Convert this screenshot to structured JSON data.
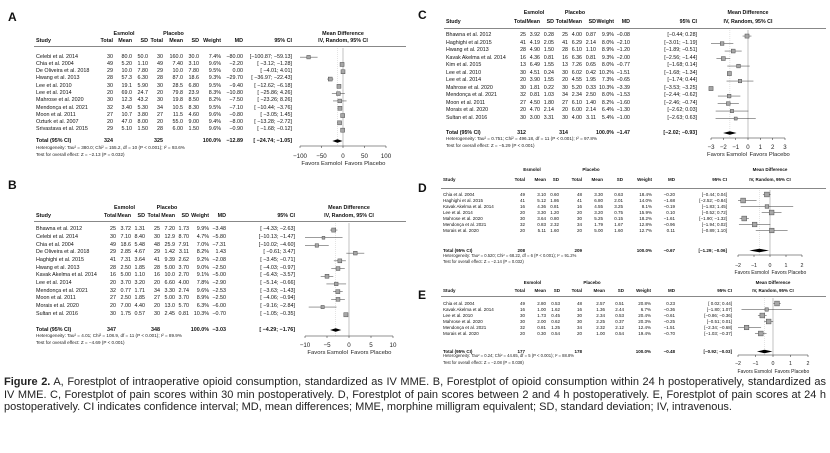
{
  "headers": {
    "group_esmolol": "Esmolol",
    "group_placebo": "Placebo",
    "group_plot": "Mean Difference",
    "columns": [
      "Study",
      "Total",
      "Mean",
      "SD",
      "Total",
      "Mean",
      "SD",
      "Weight",
      "MD",
      "95% CI"
    ],
    "plot_subtitle": "IV, Random, 95% CI",
    "total_label": "Total (95% CI)",
    "favors": [
      "Favors Esmolol",
      "Favors Placebo"
    ]
  },
  "colors": {
    "square_fill": "#a6a6a6",
    "square_stroke": "#444444",
    "zero_line": "#9a9a9a",
    "diamond": "#000000"
  },
  "panels": [
    {
      "letter": "A",
      "axis": {
        "lim": [
          -100,
          100
        ],
        "ticks": [
          -100,
          -50,
          0,
          50,
          100
        ]
      },
      "studies": [
        [
          "Celebi et al. 2014",
          "30",
          "80.0",
          "50.0",
          "30",
          "160.0",
          "30.0",
          "7.4%",
          "−80.00",
          "[−100.87; −59.13]"
        ],
        [
          "Chia et al. 2004",
          "49",
          "5.20",
          "1.10",
          "49",
          "7.40",
          "3.10",
          "9.6%",
          "−2.20",
          "[ −3.12; −1.28]"
        ],
        [
          "De Oliveira et al. 2018",
          "29",
          "10.0",
          "7.80",
          "29",
          "10.0",
          "7.80",
          "9.5%",
          "0.00",
          "[ −4.01; 4.01]"
        ],
        [
          "Hwang et al. 2013",
          "28",
          "57.3",
          "6.30",
          "28",
          "87.0",
          "18.6",
          "9.3%",
          "−29.70",
          "[ −36.97; −22.43]"
        ],
        [
          "Lee et al. 2010",
          "30",
          "19.1",
          "5.90",
          "30",
          "28.5",
          "6.80",
          "9.5%",
          "−9.40",
          "[ −12.62; −6.18]"
        ],
        [
          "Lee et al. 2014",
          "20",
          "69.0",
          "24.7",
          "20",
          "79.8",
          "23.9",
          "8.3%",
          "−10.80",
          "[ −25.86; 4.26]"
        ],
        [
          "Mahrose et al. 2020",
          "30",
          "12.3",
          "43.2",
          "30",
          "19.8",
          "8.50",
          "8.2%",
          "−7.50",
          "[ −23.26; 8.26]"
        ],
        [
          "Mendonça et al. 2021",
          "32",
          "3.40",
          "5.30",
          "34",
          "10.5",
          "8.30",
          "9.5%",
          "−7.10",
          "[ −10.44; −3.76]"
        ],
        [
          "Moon et al. 2011",
          "27",
          "10.7",
          "3.80",
          "27",
          "11.5",
          "4.60",
          "9.6%",
          "−0.80",
          "[ −3.05; 1.45]"
        ],
        [
          "Ozturk et al. 2007",
          "20",
          "47.0",
          "8.00",
          "20",
          "55.0",
          "9.00",
          "9.4%",
          "−8.00",
          "[ −13.28; −2.72]"
        ],
        [
          "Srivastava et al. 2015",
          "29",
          "5.10",
          "1.50",
          "28",
          "6.00",
          "1.50",
          "9.6%",
          "−0.90",
          "[ −1.68; −0.12]"
        ]
      ],
      "total": {
        "e_total": "324",
        "p_total": "325",
        "weight": "100.0%",
        "md": "−12.89",
        "ci": "[ −24.74; −1.05]"
      },
      "heterogeneity": "Heterogeneity: Tau² = 380.0; Chi² = 155.2, df = 10 (P < 0.001); I² = 93.6%",
      "overall_effect": "Test for overall effect: Z = −2.13 (P = 0.032)"
    },
    {
      "letter": "B",
      "axis": {
        "lim": [
          -10,
          10
        ],
        "ticks": [
          -10,
          -5,
          0,
          5,
          10
        ]
      },
      "studies": [
        [
          "Bhawna et al. 2012",
          "25",
          "3.72",
          "1.31",
          "25",
          "7.20",
          "1.73",
          "9.9%",
          "−3.48",
          "[ −4.33; −2.63]"
        ],
        [
          "Celebi et al. 2014",
          "30",
          "7.10",
          "8.40",
          "30",
          "12.9",
          "8.70",
          "4.7%",
          "−5.80",
          "[−10.13; −1.47]"
        ],
        [
          "Chia et al. 2004",
          "49",
          "18.6",
          "5.48",
          "48",
          "25.9",
          "7.91",
          "7.0%",
          "−7.31",
          "[−10.02; −4.60]"
        ],
        [
          "De Oliveira et al. 2018",
          "29",
          "2.85",
          "4.67",
          "29",
          "1.42",
          "3.11",
          "8.2%",
          "1.43",
          "[ −0.61; 3.47]"
        ],
        [
          "Haghighi et al. 2015",
          "41",
          "7.31",
          "3.64",
          "41",
          "9.39",
          "2.62",
          "9.2%",
          "−2.08",
          "[ −3.45; −0.71]"
        ],
        [
          "Hwang et al. 2013",
          "28",
          "2.50",
          "1.85",
          "28",
          "5.00",
          "3.70",
          "9.0%",
          "−2.50",
          "[ −4.03; −0.97]"
        ],
        [
          "Kavak Akelma et al. 2014",
          "16",
          "5.00",
          "1.10",
          "16",
          "10.0",
          "2.70",
          "9.1%",
          "−5.00",
          "[ −6.43; −3.57]"
        ],
        [
          "Lee et al. 2014",
          "20",
          "3.70",
          "3.20",
          "20",
          "6.60",
          "4.00",
          "7.8%",
          "−2.90",
          "[ −5.14; −0.66]"
        ],
        [
          "Mendonça et al. 2021",
          "32",
          "0.77",
          "1.71",
          "34",
          "3.30",
          "2.74",
          "9.6%",
          "−2.53",
          "[ −3.63; −1.43]"
        ],
        [
          "Moon et al. 2011",
          "27",
          "2.50",
          "1.85",
          "27",
          "5.00",
          "3.70",
          "8.9%",
          "−2.50",
          "[ −4.06; −0.94]"
        ],
        [
          "Morais et al. 2020",
          "20",
          "7.00",
          "4.40",
          "20",
          "13.0",
          "5.70",
          "6.3%",
          "−6.00",
          "[ −9.16; −2.84]"
        ],
        [
          "Sultan et al. 2016",
          "30",
          "1.75",
          "0.57",
          "30",
          "2.45",
          "0.81",
          "10.3%",
          "−0.70",
          "[ −1.05; −0.35]"
        ]
      ],
      "total": {
        "e_total": "347",
        "p_total": "348",
        "weight": "100.0%",
        "md": "−3.03",
        "ci": "[ −4.29; −1.76]"
      },
      "heterogeneity": "Heterogeneity: Tau² = 4.01; Chi² = 108.9, df = 11 (P < 0.001); I² = 89.9%",
      "overall_effect": "Test for overall effect: Z = −4.69 (P < 0.001)"
    },
    {
      "letter": "C",
      "axis": {
        "lim": [
          -3,
          3
        ],
        "ticks": [
          -3,
          -2,
          -1,
          0,
          1,
          2,
          3
        ]
      },
      "studies": [
        [
          "Bhawna et al. 2012",
          "25",
          "3.92",
          "0.28",
          "25",
          "4.00",
          "0.87",
          "9.9%",
          "−0.08",
          "[−0.44; 0.28]"
        ],
        [
          "Haghighi et al.2015",
          "41",
          "4.19",
          "2.05",
          "41",
          "6.29",
          "2.14",
          "8.0%",
          "−2.10",
          "[−3.01; −1.19]"
        ],
        [
          "Hwang et al. 2013",
          "28",
          "4.90",
          "1.50",
          "28",
          "6.10",
          "1.10",
          "8.9%",
          "−1.20",
          "[−1.89; −0.51]"
        ],
        [
          "Kavak Akelma et al. 2014",
          "16",
          "4.36",
          "0.81",
          "16",
          "6.36",
          "0.81",
          "9.3%",
          "−2.00",
          "[−2.56; −1.44]"
        ],
        [
          "Kim et al. 2015",
          "13",
          "6.49",
          "1.55",
          "13",
          "7.26",
          "0.65",
          "8.0%",
          "−0.77",
          "[−1.68; 0.14]"
        ],
        [
          "Lee et al. 2010",
          "30",
          "4.51",
          "0.24",
          "30",
          "6.02",
          "0.42",
          "10.2%",
          "−1.51",
          "[−1.68; −1.34]"
        ],
        [
          "Lee et al. 2014",
          "20",
          "3.90",
          "1.55",
          "20",
          "4.55",
          "1.95",
          "7.3%",
          "−0.65",
          "[−1.74; 0.44]"
        ],
        [
          "Mahrose et al. 2020",
          "30",
          "1.81",
          "0.22",
          "30",
          "5.20",
          "0.33",
          "10.3%",
          "−3.39",
          "[−3.53; −3.25]"
        ],
        [
          "Mendonça et al. 2021",
          "32",
          "0.81",
          "1.03",
          "34",
          "2.34",
          "2.50",
          "8.0%",
          "−1.53",
          "[−2.44; −0.62]"
        ],
        [
          "Moon et al. 2011",
          "27",
          "4.50",
          "1.80",
          "27",
          "6.10",
          "1.40",
          "8.2%",
          "−1.60",
          "[−2.46; −0.74]"
        ],
        [
          "Morais et al. 2020",
          "20",
          "4.70",
          "2.14",
          "20",
          "6.00",
          "2.14",
          "6.4%",
          "−1.30",
          "[−2.62; 0.03]"
        ],
        [
          "Sultan et al. 2016",
          "30",
          "3.00",
          "3.31",
          "30",
          "4.00",
          "3.11",
          "5.4%",
          "−1.00",
          "[−2.63; 0.63]"
        ]
      ],
      "total": {
        "e_total": "312",
        "p_total": "314",
        "weight": "100.0%",
        "md": "−1.47",
        "ci": "[−2.02; −0.93]"
      },
      "heterogeneity": "Heterogeneity: Tau² = 0.751; Chi² = 496.18, df = 11 (P < 0.001); I² = 97.8%",
      "overall_effect": "Test for overall effect: Z = −5.29 (P < 0.001)"
    },
    {
      "letter": "D",
      "axis": {
        "lim": [
          -2,
          2
        ],
        "ticks": [
          -2,
          -1,
          0,
          1,
          2
        ]
      },
      "studies": [
        [
          "Chia et al. 2004",
          "49",
          "3.10",
          "0.60",
          "48",
          "3.30",
          "0.63",
          "18.4%",
          "−0.20",
          "[−0.44; 0.04]"
        ],
        [
          "Haghighi et al. 2015",
          "41",
          "5.12",
          "1.86",
          "41",
          "6.80",
          "2.01",
          "14.0%",
          "−1.68",
          "[−2.52; −0.84]"
        ],
        [
          "Kavak Akelma et al. 2014",
          "16",
          "4.36",
          "0.81",
          "16",
          "4.55",
          "3.25",
          "8.1%",
          "−0.19",
          "[−1.83; 1.45]"
        ],
        [
          "Lee et al. 2014",
          "20",
          "3.30",
          "1.20",
          "20",
          "3.20",
          "0.75",
          "15.9%",
          "0.10",
          "[−0.52; 0.72]"
        ],
        [
          "Mahrose et al. 2020",
          "30",
          "3.64",
          "0.80",
          "30",
          "5.25",
          "0.15",
          "18.2%",
          "−1.61",
          "[−1.90; −1.32]"
        ],
        [
          "Mendonça et al. 2021",
          "32",
          "0.83",
          "2.32",
          "34",
          "1.79",
          "1.67",
          "12.8%",
          "−0.96",
          "[−1.94; 0.02]"
        ],
        [
          "Morais et al. 2020",
          "20",
          "5.11",
          "1.60",
          "20",
          "5.00",
          "1.60",
          "12.7%",
          "0.11",
          "[−0.89; 1.10]"
        ]
      ],
      "total": {
        "e_total": "208",
        "p_total": "209",
        "weight": "100.0%",
        "md": "−0.67",
        "ci": "[−1.29; −0.06]"
      },
      "heterogeneity": "Heterogeneity: Tau² = 0.520; Chi² = 68.22, df = 6 (P < 0.001); I² = 91.2%",
      "overall_effect": "Test for overall effect: Z = −2.14 (P = 0.032)"
    },
    {
      "letter": "E",
      "axis": {
        "lim": [
          -2,
          2
        ],
        "ticks": [
          -2,
          -1,
          0,
          1,
          2
        ]
      },
      "studies": [
        [
          "Chia et al. 2004",
          "49",
          "2.80",
          "0.53",
          "48",
          "2.57",
          "0.51",
          "20.8%",
          "0.23",
          "[ 0.02; 0.44]"
        ],
        [
          "Kavak Akelma et al. 2014",
          "16",
          "1.00",
          "1.62",
          "16",
          "1.36",
          "2.44",
          "6.7%",
          "−0.36",
          "[−1.80; 1.07]"
        ],
        [
          "Lee et al. 2010",
          "30",
          "1.73",
          "0.45",
          "30",
          "2.34",
          "0.53",
          "20.4%",
          "−0.61",
          "[−0.86; −0.36]"
        ],
        [
          "Mahrose et al. 2020",
          "30",
          "2.00",
          "0.62",
          "30",
          "2.25",
          "0.37",
          "20.3%",
          "−0.25",
          "[−0.51; 0.01]"
        ],
        [
          "Mendonça et al. 2021",
          "32",
          "0.81",
          "1.25",
          "34",
          "2.32",
          "2.12",
          "12.4%",
          "−1.51",
          "[−2.34; −0.68]"
        ],
        [
          "Morais et al. 2020",
          "20",
          "0.30",
          "0.54",
          "20",
          "1.00",
          "0.54",
          "19.4%",
          "−0.70",
          "[−1.03; −0.37]"
        ]
      ],
      "total": {
        "e_total": "177",
        "p_total": "178",
        "weight": "100.0%",
        "md": "−0.48",
        "ci": "[−0.92; −0.03]"
      },
      "heterogeneity": "Heterogeneity: Tau² = 0.24; Chi² = 44.65, df = 5 (P < 0.001); I² = 88.8%",
      "overall_effect": "Test for overall effect: Z = −2.08 (P = 0.038)"
    }
  ],
  "caption": {
    "label": "Figure 2.",
    "text": " A, Forestplot of intraoperative opioid consumption, standardized as IV MME. B, Forestplot of opioid consumption within 24 h postoperatively, standardized as IV MME. C, Forestplot of pain scores within 30 min postoperatively. D, Forestplot of pain scores between 2 and 4 h postoperatively. E, Forestplot of pain scores at 24 h postoperatively. CI indicates confidence interval; MD, mean differences; MME, morphine milligram equivalent; SD, standard deviation; IV, intravenous."
  }
}
